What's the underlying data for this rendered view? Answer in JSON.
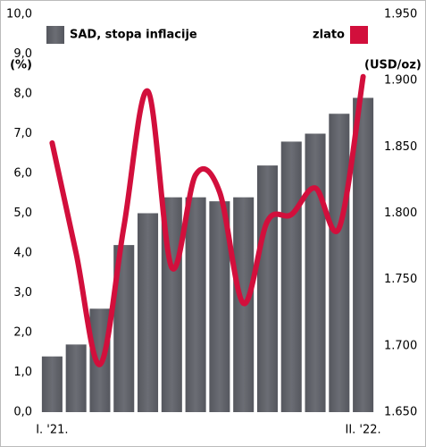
{
  "chart_data": {
    "type": "bar-line",
    "y_label": "(%)",
    "y2_label": "(USD/oz)",
    "categories": [
      "I. '21.",
      null,
      null,
      null,
      null,
      null,
      null,
      null,
      null,
      null,
      null,
      null,
      null,
      "II. '22."
    ],
    "series": [
      {
        "name": "SAD, stopa inflacije",
        "color": "#5d5f66",
        "type": "bar",
        "axis": "y",
        "values": [
          1.4,
          1.7,
          2.6,
          4.2,
          5.0,
          5.4,
          5.4,
          5.3,
          5.4,
          6.2,
          6.8,
          7.0,
          7.5,
          7.9
        ]
      },
      {
        "name": "zlato",
        "color": "#d20f3c",
        "type": "line",
        "axis": "y2",
        "values": [
          1853,
          1770,
          1686,
          1790,
          1892,
          1759,
          1829,
          1816,
          1732,
          1794,
          1799,
          1819,
          1789,
          1903
        ]
      }
    ],
    "ylim": [
      0,
      10
    ],
    "yticks": [
      {
        "value": 0,
        "label": "0,0"
      },
      {
        "value": 1,
        "label": "1,0"
      },
      {
        "value": 2,
        "label": "2,0"
      },
      {
        "value": 3,
        "label": "3,0"
      },
      {
        "value": 4,
        "label": "4,0"
      },
      {
        "value": 5,
        "label": "5,0"
      },
      {
        "value": 6,
        "label": "6,0"
      },
      {
        "value": 7,
        "label": "7,0"
      },
      {
        "value": 8,
        "label": "8,0"
      },
      {
        "value": 9,
        "label": "9,0"
      },
      {
        "value": 10,
        "label": "10,0"
      }
    ],
    "y2lim": [
      1650,
      1950
    ],
    "y2ticks": [
      {
        "value": 1650,
        "label": "1.650"
      },
      {
        "value": 1700,
        "label": "1.700"
      },
      {
        "value": 1750,
        "label": "1.750"
      },
      {
        "value": 1800,
        "label": "1.800"
      },
      {
        "value": 1850,
        "label": "1.850"
      },
      {
        "value": 1900,
        "label": "1.900"
      },
      {
        "value": 1950,
        "label": "1.950"
      }
    ]
  }
}
